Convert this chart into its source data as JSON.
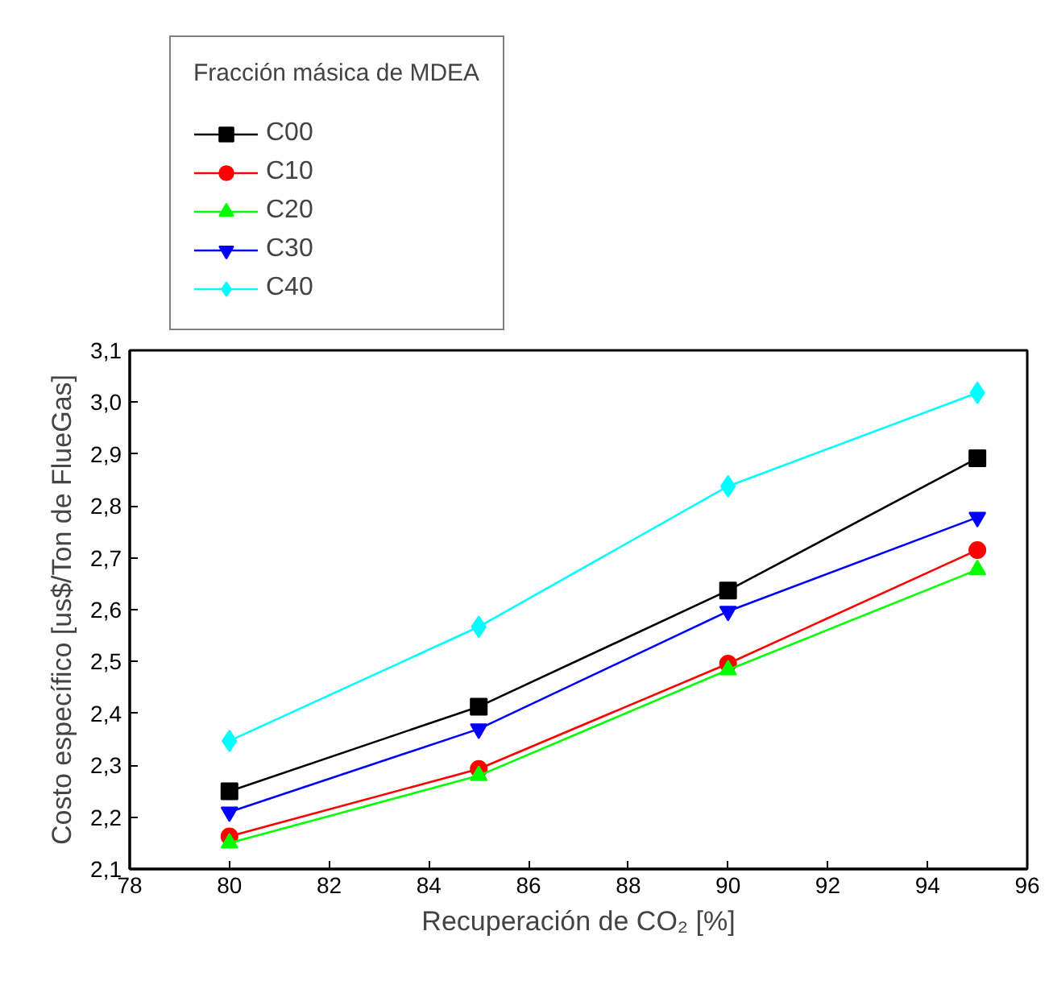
{
  "chart_data": {
    "type": "line",
    "xlabel": "Recuperación de CO₂ [%]",
    "ylabel": "Costo específico [us$/Ton de FlueGas]",
    "legend_title": "Fracción másica de MDEA",
    "x": [
      80,
      85,
      90,
      95
    ],
    "series": [
      {
        "name": "C00",
        "color": "#000000",
        "marker": "square",
        "values": [
          2.25,
          2.413,
          2.637,
          2.892
        ]
      },
      {
        "name": "C10",
        "color": "#ff0000",
        "marker": "circle",
        "values": [
          2.163,
          2.293,
          2.496,
          2.715
        ]
      },
      {
        "name": "C20",
        "color": "#00ff00",
        "marker": "triangle",
        "values": [
          2.15,
          2.28,
          2.484,
          2.677
        ]
      },
      {
        "name": "C30",
        "color": "#0000ff",
        "marker": "triangle_down",
        "values": [
          2.21,
          2.37,
          2.597,
          2.778
        ]
      },
      {
        "name": "C40",
        "color": "#00ffff",
        "marker": "diamond",
        "values": [
          2.347,
          2.567,
          2.838,
          3.018
        ]
      }
    ],
    "xlim": [
      78,
      96
    ],
    "xticks": [
      78,
      80,
      82,
      84,
      86,
      88,
      90,
      92,
      94,
      96
    ],
    "ylim": [
      2.1,
      3.1
    ],
    "yticks": [
      {
        "value": 2.1,
        "label": "2,1"
      },
      {
        "value": 2.2,
        "label": "2,2"
      },
      {
        "value": 2.3,
        "label": "2,3"
      },
      {
        "value": 2.4,
        "label": "2,4"
      },
      {
        "value": 2.5,
        "label": "2,5"
      },
      {
        "value": 2.6,
        "label": "2,6"
      },
      {
        "value": 2.7,
        "label": "2,7"
      },
      {
        "value": 2.8,
        "label": "2,8"
      },
      {
        "value": 2.9,
        "label": "2,9"
      },
      {
        "value": 3.0,
        "label": "3,0"
      },
      {
        "value": 3.1,
        "label": "3,1"
      }
    ],
    "grid": false,
    "legend": "top left",
    "line_style": "solid"
  }
}
